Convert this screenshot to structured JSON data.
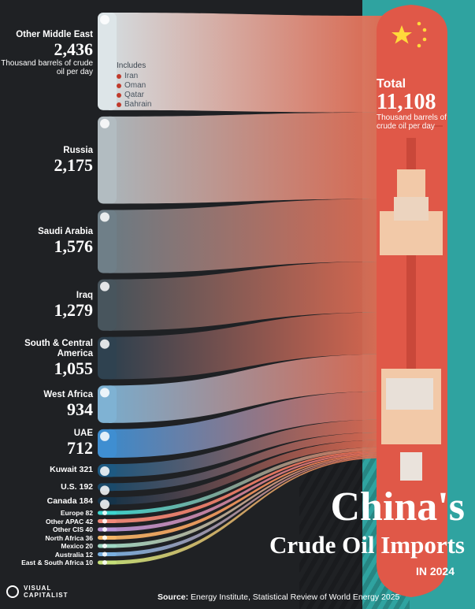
{
  "chart_data": {
    "type": "sankey",
    "title": "China's",
    "title_line2": "Crude Oil Imports",
    "subtitle": "IN 2024",
    "unit": "Thousand barrels of crude oil per day",
    "total": {
      "label": "Total",
      "value": "11,108",
      "unit": "Thousand barrels of crude oil per day"
    },
    "includes": {
      "title": "Includes",
      "items": [
        "Iran",
        "Oman",
        "Qatar",
        "Bahrain"
      ]
    },
    "sources": [
      {
        "name": "Other Middle East",
        "value": 2436,
        "display": "2,436",
        "color": "#dde5e8"
      },
      {
        "name": "Russia",
        "value": 2175,
        "display": "2,175",
        "color": "#b2bcc1"
      },
      {
        "name": "Saudi Arabia",
        "value": 1576,
        "display": "1,576",
        "color": "#6f7f88"
      },
      {
        "name": "Iraq",
        "value": 1279,
        "display": "1,279",
        "color": "#48555d"
      },
      {
        "name": "South & Central America",
        "value": 1055,
        "display": "1,055",
        "color": "#2f4250"
      },
      {
        "name": "West Africa",
        "value": 934,
        "display": "934",
        "color": "#7fb2d3"
      },
      {
        "name": "UAE",
        "value": 712,
        "display": "712",
        "color": "#3f8ed1"
      },
      {
        "name": "Kuwait",
        "value": 321,
        "display": "321",
        "color": "#1e5a82"
      },
      {
        "name": "U.S.",
        "value": 192,
        "display": "192",
        "color": "#1b4a6a"
      },
      {
        "name": "Canada",
        "value": 184,
        "display": "184",
        "color": "#16344a"
      },
      {
        "name": "Europe",
        "value": 82,
        "display": "82",
        "color": "#3fd6d0"
      },
      {
        "name": "Other APAC",
        "value": 42,
        "display": "42",
        "color": "#f08a7a"
      },
      {
        "name": "Other CIS",
        "value": 40,
        "display": "40",
        "color": "#b794d6"
      },
      {
        "name": "North Africa",
        "value": 36,
        "display": "36",
        "color": "#f3b566"
      },
      {
        "name": "Mexico",
        "value": 20,
        "display": "20",
        "color": "#9fd8c4"
      },
      {
        "name": "Australia",
        "value": 12,
        "display": "12",
        "color": "#7ab0e0"
      },
      {
        "name": "East & South Africa",
        "value": 10,
        "display": "10",
        "color": "#c6e07a"
      }
    ],
    "source_note": "Energy Institute, Statistical Review of World Energy 2025",
    "source_label": "Source:"
  },
  "brand": {
    "line1": "VISUAL",
    "line2": "CAPITALIST"
  },
  "colors": {
    "ship_hull": "#e05848",
    "ship_deck": "#f2c9a8",
    "background_dark": "#1f2124",
    "background_teal": "#2fa3a0",
    "flow_target": "#e26a50"
  }
}
